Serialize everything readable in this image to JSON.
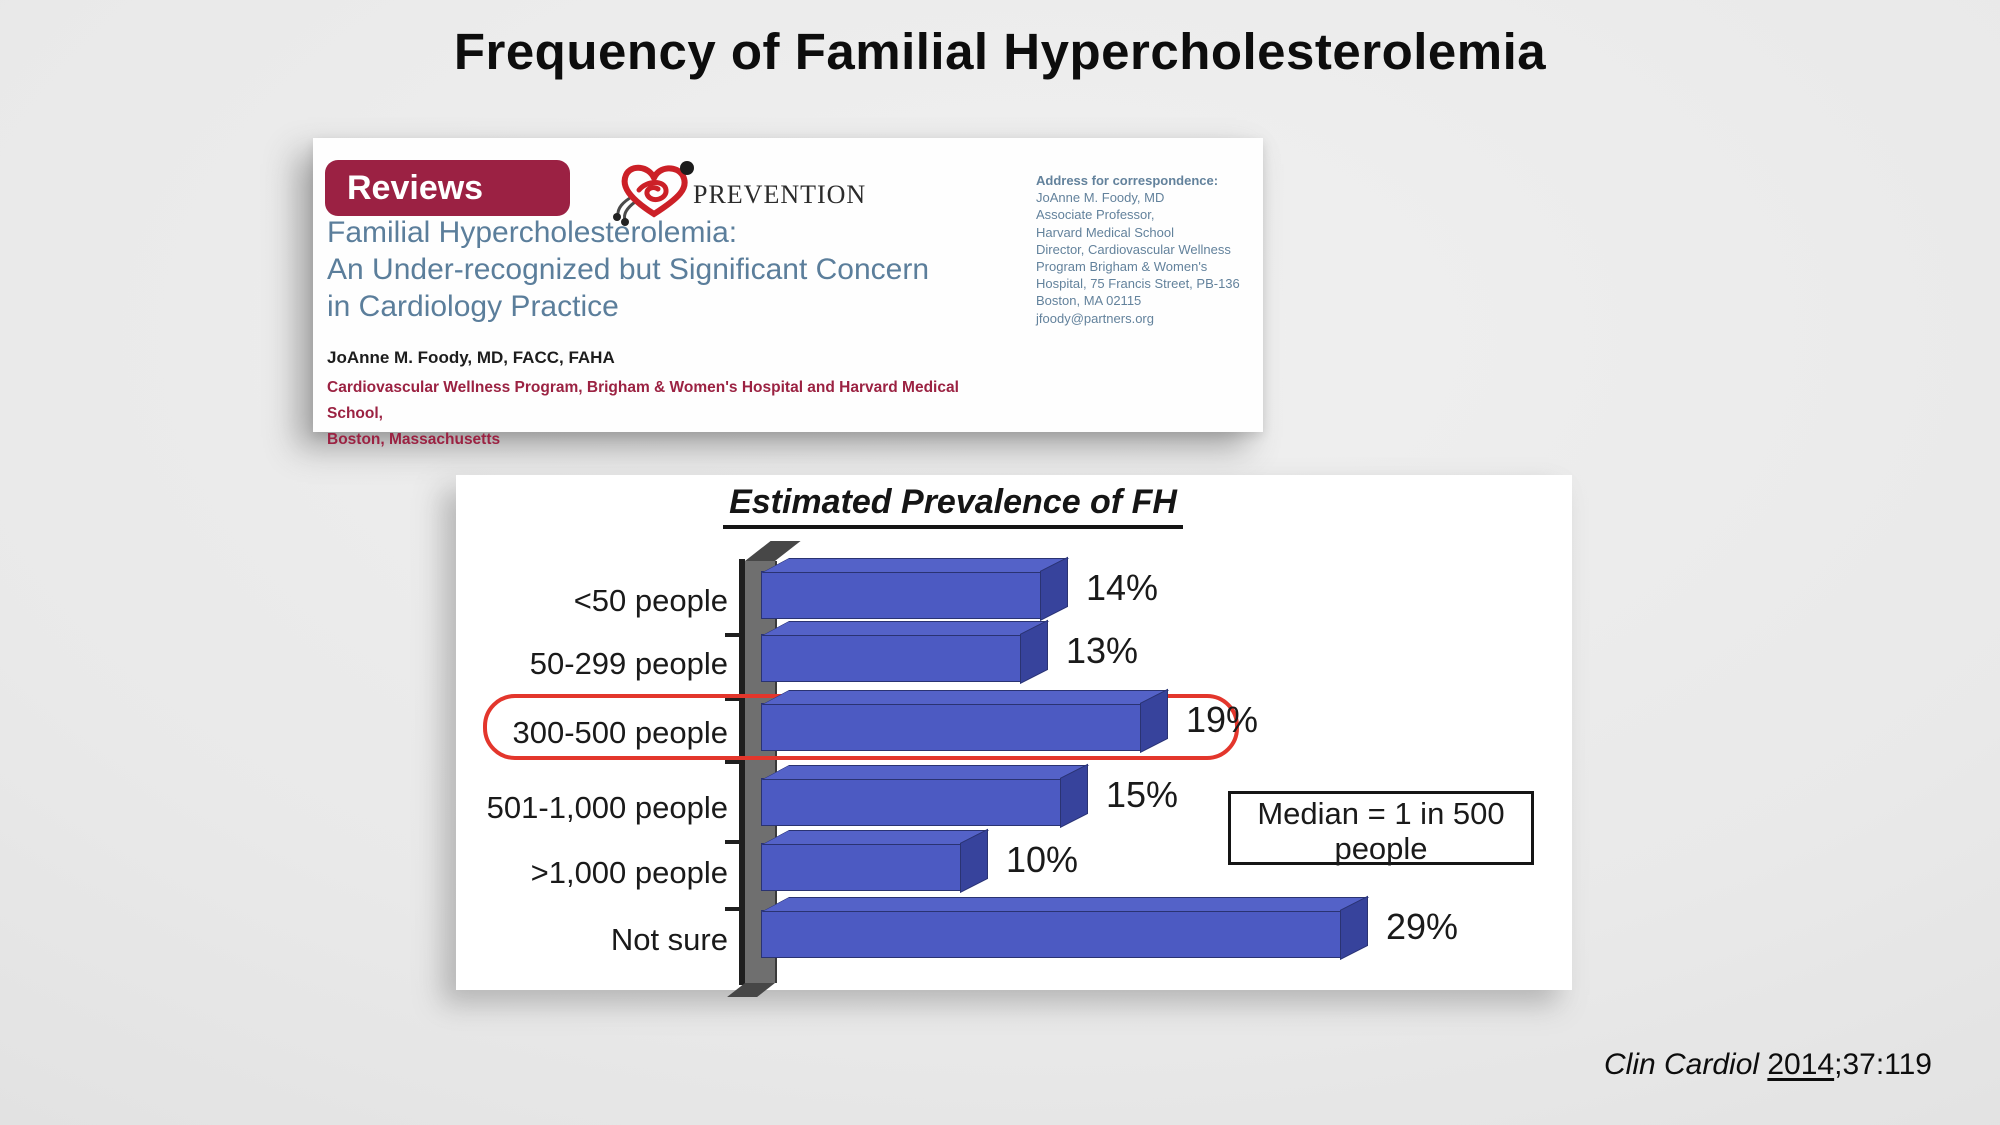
{
  "slide": {
    "title": "Frequency of Familial Hypercholesterolemia",
    "citation": {
      "journal": "Clin Cardiol ",
      "year": "2014",
      "suffix": ";37:119"
    }
  },
  "article": {
    "badge": "Reviews",
    "logo_text": "PREVENTION",
    "title_lines": [
      "Familial Hypercholesterolemia:",
      "An Under-recognized but Significant Concern",
      "in Cardiology Practice"
    ],
    "author": "JoAnne M. Foody, MD, FACC, FAHA",
    "affiliation_lines": [
      "Cardiovascular Wellness Program, Brigham & Women's Hospital and Harvard Medical School,",
      "Boston, Massachusetts"
    ],
    "correspondence": {
      "heading": "Address for correspondence:",
      "lines": [
        "JoAnne M. Foody, MD",
        "Associate Professor,",
        "Harvard Medical School",
        "Director, Cardiovascular Wellness",
        "Program Brigham & Women's",
        "Hospital, 75 Francis Street, PB-136",
        "Boston, MA 02115",
        "jfoody@partners.org"
      ]
    }
  },
  "chart_data": {
    "type": "bar",
    "orientation": "horizontal",
    "title": "Estimated Prevalence of FH",
    "categories": [
      "<50 people",
      "50-299 people",
      "300-500 people",
      "501-1,000 people",
      ">1,000 people",
      "Not sure"
    ],
    "values": [
      14,
      13,
      19,
      15,
      10,
      29
    ],
    "value_labels": [
      "14%",
      "13%",
      "19%",
      "15%",
      "10%",
      "29%"
    ],
    "unit": "%",
    "xlim": [
      0,
      30
    ],
    "grid": false,
    "highlighted_category": "300-500 people",
    "annotation": "Median = 1 in 500 people",
    "annotation_lines": [
      "Median = 1 in 500",
      "people"
    ],
    "bar_color": "#4c5ac2",
    "highlight_color": "#e3362c"
  },
  "colors": {
    "badge_maroon": "#9b2143",
    "article_title_blue": "#5b7e9b",
    "affiliation_red": "#9b2242",
    "correspondence_blue": "#63829c",
    "axis_wall_gray": "#6f6f6f",
    "logo_heart_red": "#cc2027"
  }
}
